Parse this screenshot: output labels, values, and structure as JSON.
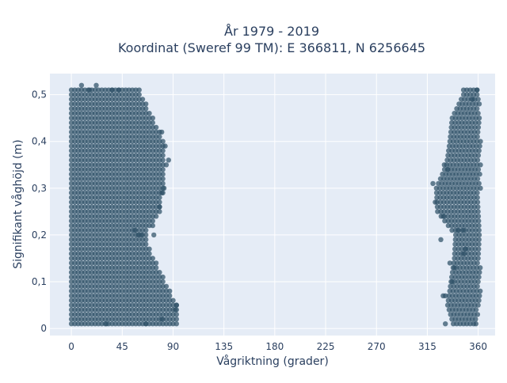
{
  "chart_data": {
    "type": "scatter",
    "title_lines": [
      "År 1979 - 2019",
      "Koordinat (Sweref 99 TM): E 366811, N 6256645"
    ],
    "xlabel": "Vågriktning (grader)",
    "ylabel": "Signifikant våghöjd (m)",
    "xlim": [
      -19,
      375
    ],
    "ylim": [
      -0.015,
      0.545
    ],
    "x_ticks": [
      0,
      45,
      90,
      135,
      180,
      225,
      270,
      315,
      360
    ],
    "x_tick_labels": [
      "0",
      "45",
      "90",
      "135",
      "180",
      "225",
      "270",
      "315",
      "360"
    ],
    "y_ticks": [
      0,
      0.1,
      0.2,
      0.3,
      0.4,
      0.5
    ],
    "y_tick_labels": [
      "0",
      "0,1",
      "0,2",
      "0,3",
      "0,4",
      "0,5"
    ],
    "grid": true,
    "background_color": "#E5ECF6",
    "marker_color": "#2E5166",
    "series": [
      {
        "clusters": [
          {
            "y_range": [
              0.01,
              0.51
            ],
            "y_step": 0.01,
            "x_step": 3,
            "envelope": [
              {
                "y": 0.01,
                "x": [
                  0,
                  94
                ]
              },
              {
                "y": 0.05,
                "x": [
                  0,
                  93
                ]
              },
              {
                "y": 0.1,
                "x": [
                  0,
                  83
                ]
              },
              {
                "y": 0.15,
                "x": [
                  0,
                  74
                ]
              },
              {
                "y": 0.18,
                "x": [
                  0,
                  67
                ]
              },
              {
                "y": 0.21,
                "x": [
                  0,
                  67
                ]
              },
              {
                "y": 0.25,
                "x": [
                  0,
                  79
                ]
              },
              {
                "y": 0.3,
                "x": [
                  0,
                  82
                ]
              },
              {
                "y": 0.35,
                "x": [
                  0,
                  84
                ]
              },
              {
                "y": 0.4,
                "x": [
                  0,
                  82
                ]
              },
              {
                "y": 0.45,
                "x": [
                  0,
                  72
                ]
              },
              {
                "y": 0.5,
                "x": [
                  0,
                  62
                ]
              }
            ]
          },
          {
            "y_range": [
              0.01,
              0.51
            ],
            "y_step": 0.01,
            "x_step": 3,
            "envelope": [
              {
                "y": 0.01,
                "x": [
                  338,
                  358
                ]
              },
              {
                "y": 0.05,
                "x": [
                  333,
                  362
                ]
              },
              {
                "y": 0.1,
                "x": [
                  336,
                  362
                ]
              },
              {
                "y": 0.15,
                "x": [
                  339,
                  362
                ]
              },
              {
                "y": 0.2,
                "x": [
                  340,
                  362
                ]
              },
              {
                "y": 0.25,
                "x": [
                  324,
                  362
                ]
              },
              {
                "y": 0.3,
                "x": [
                  323,
                  362
                ]
              },
              {
                "y": 0.35,
                "x": [
                  332,
                  362
                ]
              },
              {
                "y": 0.4,
                "x": [
                  335,
                  362
                ]
              },
              {
                "y": 0.45,
                "x": [
                  337,
                  362
                ]
              },
              {
                "y": 0.5,
                "x": [
                  347,
                  361
                ]
              }
            ]
          }
        ],
        "outliers": [
          {
            "x": 9,
            "y": 0.52
          },
          {
            "x": 22,
            "y": 0.52
          },
          {
            "x": 16,
            "y": 0.51
          },
          {
            "x": 36,
            "y": 0.51
          },
          {
            "x": 42,
            "y": 0.51
          },
          {
            "x": 31,
            "y": 0.01
          },
          {
            "x": 66,
            "y": 0.01
          },
          {
            "x": 80,
            "y": 0.02
          },
          {
            "x": 92,
            "y": 0.04
          },
          {
            "x": 93,
            "y": 0.05
          },
          {
            "x": 73,
            "y": 0.2
          },
          {
            "x": 72,
            "y": 0.22
          },
          {
            "x": 78,
            "y": 0.26
          },
          {
            "x": 80,
            "y": 0.29
          },
          {
            "x": 82,
            "y": 0.3
          },
          {
            "x": 86,
            "y": 0.36
          },
          {
            "x": 83,
            "y": 0.39
          },
          {
            "x": 80,
            "y": 0.42
          },
          {
            "x": 59,
            "y": 0.2
          },
          {
            "x": 56,
            "y": 0.21
          },
          {
            "x": 62,
            "y": 0.2
          },
          {
            "x": 327,
            "y": 0.19
          },
          {
            "x": 320,
            "y": 0.31
          },
          {
            "x": 322,
            "y": 0.27
          },
          {
            "x": 329,
            "y": 0.24
          },
          {
            "x": 333,
            "y": 0.34
          },
          {
            "x": 330,
            "y": 0.35
          },
          {
            "x": 335,
            "y": 0.14
          },
          {
            "x": 339,
            "y": 0.13
          },
          {
            "x": 329,
            "y": 0.07
          },
          {
            "x": 331,
            "y": 0.07
          },
          {
            "x": 337,
            "y": 0.1
          },
          {
            "x": 342,
            "y": 0.21
          },
          {
            "x": 347,
            "y": 0.21
          },
          {
            "x": 349,
            "y": 0.17
          },
          {
            "x": 347,
            "y": 0.16
          },
          {
            "x": 331,
            "y": 0.01
          },
          {
            "x": 358,
            "y": 0.01
          },
          {
            "x": 359,
            "y": 0.51
          },
          {
            "x": 355,
            "y": 0.49
          }
        ]
      }
    ]
  }
}
